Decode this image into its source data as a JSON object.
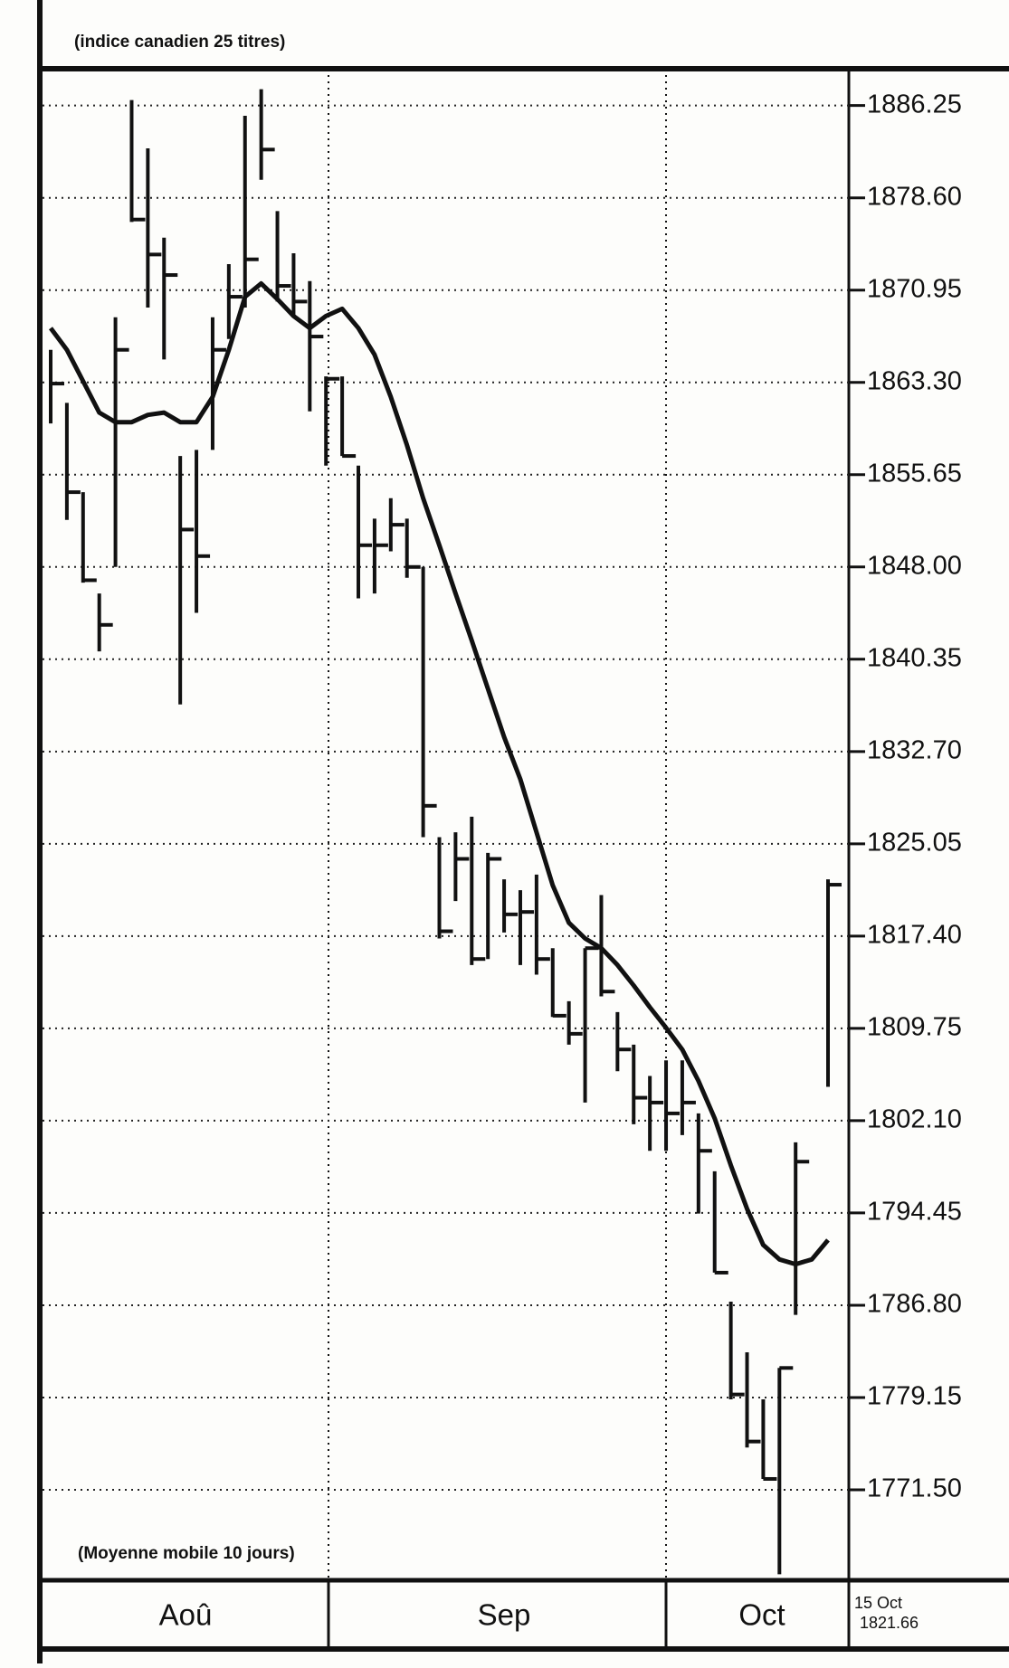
{
  "chart_data": {
    "type": "ohlc",
    "title": "(indice canadien 25 titres)",
    "annotation": "(Moyenne mobile 10 jours)",
    "months": [
      "Aoû",
      "Sep",
      "Oct"
    ],
    "last": {
      "date": "15 Oct",
      "value": 1821.66
    },
    "categories": [
      null,
      null,
      null,
      null,
      null,
      null,
      null,
      null,
      null,
      null,
      null,
      null,
      null,
      null,
      null,
      null,
      null,
      null,
      null,
      null,
      null,
      null,
      null,
      null,
      null,
      null,
      null,
      null,
      null,
      null,
      null,
      null,
      null,
      null,
      null,
      null,
      null,
      null,
      null,
      null,
      null,
      null,
      null,
      null,
      null,
      null,
      null,
      null,
      null
    ],
    "high": [
      1866.0,
      1861.6,
      1854.2,
      1845.8,
      1868.7,
      1886.7,
      1882.7,
      1875.3,
      1857.2,
      1857.7,
      1868.7,
      1873.1,
      1885.4,
      1887.6,
      1877.5,
      1874.0,
      1871.7,
      1863.8,
      1863.8,
      1856.4,
      1852.0,
      1853.7,
      1852.0,
      1848.0,
      1825.6,
      1826.0,
      1827.3,
      1824.3,
      1822.1,
      1821.2,
      1822.5,
      1816.4,
      1812.0,
      1816.4,
      1820.8,
      1811.1,
      1808.4,
      1805.8,
      1807.1,
      1807.1,
      1802.7,
      1797.9,
      1787.1,
      1782.9,
      1779.0,
      1781.6,
      1800.3,
      null,
      1822.1
    ],
    "low": [
      1859.9,
      1851.9,
      1846.7,
      1841.0,
      1848.0,
      1876.6,
      1869.5,
      1865.2,
      1836.6,
      1844.2,
      1857.7,
      1866.9,
      1869.5,
      1880.1,
      1870.0,
      1868.7,
      1860.9,
      1856.4,
      1857.2,
      1845.4,
      1845.8,
      1849.3,
      1847.1,
      1825.6,
      1817.2,
      1820.3,
      1815.0,
      1815.5,
      1817.7,
      1815.0,
      1814.2,
      1810.7,
      1808.4,
      1803.6,
      1812.4,
      1806.2,
      1801.8,
      1799.6,
      1799.6,
      1800.9,
      1794.4,
      1789.5,
      1779.0,
      1775.0,
      1772.4,
      1764.5,
      1786.0,
      null,
      1804.9
    ],
    "close": [
      1863.2,
      1854.2,
      1846.9,
      1843.2,
      1866.0,
      1876.8,
      1873.9,
      1872.2,
      1851.1,
      1848.9,
      1866.0,
      1870.4,
      1873.5,
      1882.6,
      1871.3,
      1870.0,
      1867.1,
      1863.6,
      1857.2,
      1849.8,
      1849.8,
      1851.5,
      1848.0,
      1828.2,
      1817.8,
      1823.8,
      1815.5,
      1823.8,
      1819.2,
      1819.4,
      1815.5,
      1810.8,
      1809.3,
      1816.4,
      1812.8,
      1808.0,
      1804.0,
      1803.6,
      1802.7,
      1803.6,
      1799.6,
      1789.5,
      1779.4,
      1775.5,
      1772.4,
      1781.6,
      1798.7,
      null,
      1821.66
    ],
    "moving_average": [
      1867.8,
      1866.0,
      1863.4,
      1860.8,
      1860.0,
      1860.0,
      1860.6,
      1860.8,
      1860.0,
      1860.0,
      1862.1,
      1866.0,
      1870.4,
      1871.5,
      1870.2,
      1868.8,
      1867.8,
      1868.8,
      1869.4,
      1867.8,
      1865.6,
      1862.1,
      1858.1,
      1853.7,
      1849.8,
      1845.8,
      1841.9,
      1837.9,
      1833.9,
      1830.4,
      1826.0,
      1821.6,
      1818.5,
      1817.2,
      1816.4,
      1815.0,
      1813.3,
      1811.5,
      1809.8,
      1808.0,
      1805.4,
      1802.3,
      1798.4,
      1794.8,
      1791.8,
      1790.6,
      1790.2,
      1790.6,
      1792.2
    ],
    "color": "#111111",
    "ylim": [
      1764.0,
      1889.3
    ],
    "yticks": [
      1886.25,
      {
        "value": 1878.6,
        "label": "1878.60"
      },
      1870.95,
      {
        "value": 1863.3,
        "label": "1863.30"
      },
      1855.65,
      {
        "value": 1848,
        "label": "1848.00"
      },
      1840.35,
      {
        "value": 1832.7,
        "label": "1832.70"
      },
      1825.05,
      {
        "value": 1817.4,
        "label": "1817.40"
      },
      1809.75,
      {
        "value": 1802.1,
        "label": "1802.10"
      },
      1794.45,
      {
        "value": 1786.8,
        "label": "1786.80"
      },
      1779.15,
      {
        "value": 1771.5,
        "label": "1771.50"
      }
    ],
    "grid": true,
    "y_axis_side": "right"
  }
}
